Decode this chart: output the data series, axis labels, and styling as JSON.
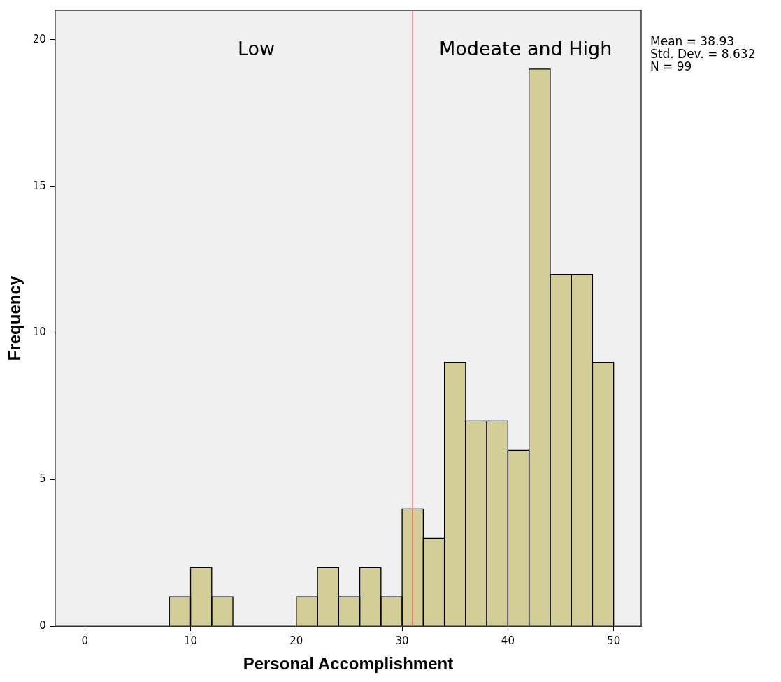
{
  "chart_data": {
    "type": "histogram",
    "xlabel": "Personal Accomplishment",
    "ylabel": "Frequency",
    "bins": [
      8,
      10,
      12,
      14,
      16,
      18,
      20,
      22,
      24,
      26,
      28,
      30,
      32,
      34,
      36,
      38,
      40,
      42,
      44,
      46,
      48,
      50
    ],
    "values": [
      1,
      2,
      1,
      0,
      0,
      0,
      1,
      2,
      1,
      2,
      1,
      4,
      3,
      9,
      7,
      7,
      6,
      19,
      12,
      12,
      9
    ],
    "color": "#d3ce97",
    "xlim": [
      -2.8,
      52.6
    ],
    "xticks": [
      0,
      10,
      20,
      30,
      40,
      50
    ],
    "ylim": [
      0,
      21
    ],
    "yticks": [
      0,
      5,
      10,
      15,
      20
    ],
    "ref_lines": [
      {
        "axis": "x",
        "value": 31,
        "color": "#e8504f"
      }
    ],
    "annotations": [
      "Low",
      "Modeate and High",
      "Mean = 38.93",
      "Std. Dev. = 8.632",
      "N = 99"
    ],
    "grid": false,
    "legend": false
  }
}
